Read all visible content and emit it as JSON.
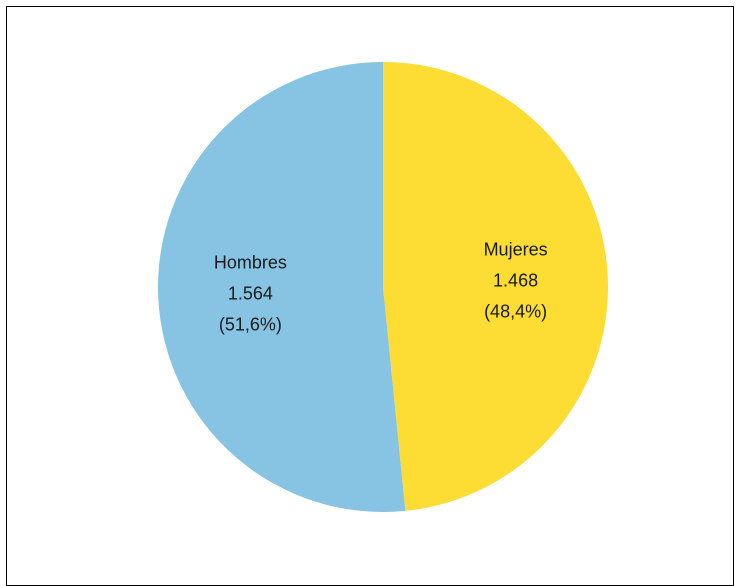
{
  "chart_data": {
    "type": "pie",
    "title": "",
    "slices": [
      {
        "name": "Mujeres",
        "value": 1468,
        "value_label": "1.468",
        "percent": 48.4,
        "percent_label": "(48,4%)",
        "color": "#FDDC34"
      },
      {
        "name": "Hombres",
        "value": 1564,
        "value_label": "1.564",
        "percent": 51.6,
        "percent_label": "(51,6%)",
        "color": "#87C4E3"
      }
    ],
    "start": "12 o'clock",
    "direction": "clockwise",
    "legend": "none"
  }
}
